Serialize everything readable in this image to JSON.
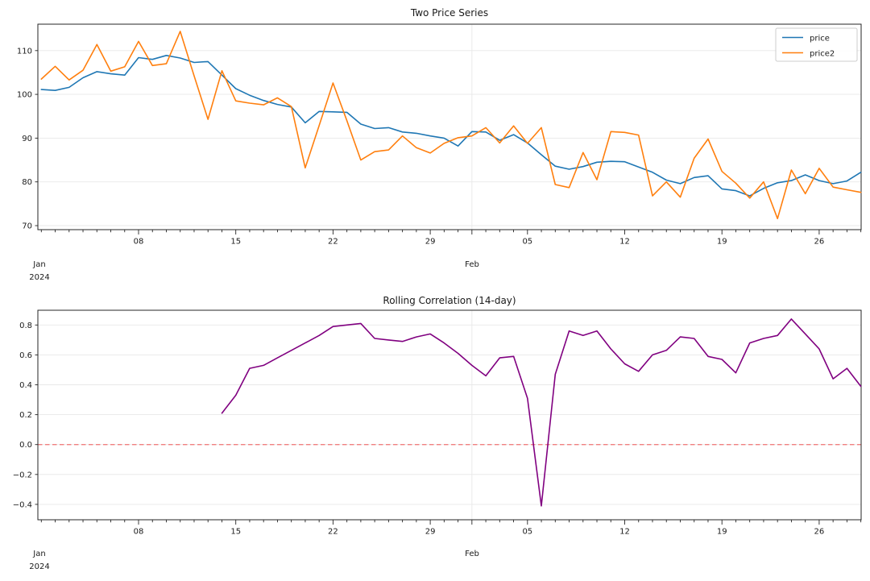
{
  "chart_data": [
    {
      "type": "line",
      "title": "Two Price Series",
      "grid": true,
      "x_axis": {
        "start": "2024-01-01",
        "end": "2024-02-29",
        "frequency": "daily",
        "major_tick_labels": [
          "08",
          "15",
          "22",
          "29",
          "05",
          "12",
          "19",
          "26"
        ],
        "major_tick_day_indices": [
          7,
          14,
          21,
          28,
          35,
          42,
          49,
          56
        ],
        "month_tick": {
          "day_index": 31,
          "label": "Feb"
        },
        "offset_label": [
          "Jan",
          "2024"
        ]
      },
      "y_axis": {
        "ticks": [
          70,
          80,
          90,
          100,
          110
        ],
        "range": [
          69,
          116
        ]
      },
      "legend": {
        "position": "upper right",
        "entries": [
          "price",
          "price2"
        ]
      },
      "series": [
        {
          "name": "price",
          "color": "#1f77b4",
          "values": [
            101.1,
            100.9,
            101.6,
            103.8,
            105.2,
            104.7,
            104.4,
            108.4,
            108.0,
            108.9,
            108.3,
            107.3,
            107.5,
            104.4,
            101.3,
            99.8,
            98.6,
            97.7,
            97.1,
            93.5,
            96.1,
            96.0,
            95.9,
            93.2,
            92.2,
            92.4,
            91.4,
            91.1,
            90.5,
            90.0,
            88.2,
            91.5,
            91.4,
            89.5,
            90.8,
            88.9,
            86.2,
            83.6,
            82.9,
            83.5,
            84.5,
            84.7,
            84.6,
            83.4,
            82.2,
            80.4,
            79.6,
            81.0,
            81.4,
            78.4,
            78.0,
            76.8,
            78.5,
            79.8,
            80.3,
            81.6,
            80.3,
            79.6,
            80.2,
            82.2
          ]
        },
        {
          "name": "price2",
          "color": "#ff7f0e",
          "values": [
            103.5,
            106.4,
            103.3,
            105.5,
            111.4,
            105.3,
            106.3,
            112.1,
            106.6,
            107.0,
            114.4,
            104.2,
            94.3,
            105.4,
            98.5,
            98.0,
            97.6,
            99.2,
            97.2,
            83.2,
            92.9,
            102.6,
            94.0,
            85.0,
            86.9,
            87.3,
            90.5,
            87.8,
            86.6,
            88.8,
            90.1,
            90.5,
            92.4,
            88.9,
            92.8,
            88.8,
            92.4,
            79.4,
            78.7,
            86.7,
            80.5,
            91.5,
            91.3,
            90.7,
            76.8,
            80.0,
            76.5,
            85.4,
            89.8,
            82.4,
            79.7,
            76.3,
            80.0,
            71.6,
            82.7,
            77.3,
            83.1,
            78.8,
            78.2,
            77.6
          ]
        }
      ]
    },
    {
      "type": "line",
      "title": "Rolling Correlation (14-day)",
      "grid": true,
      "x_axis": {
        "start": "2024-01-01",
        "end": "2024-02-29",
        "frequency": "daily",
        "major_tick_labels": [
          "08",
          "15",
          "22",
          "29",
          "05",
          "12",
          "19",
          "26"
        ],
        "major_tick_day_indices": [
          7,
          14,
          21,
          28,
          35,
          42,
          49,
          56
        ],
        "month_tick": {
          "day_index": 31,
          "label": "Feb"
        },
        "offset_label": [
          "Jan",
          "2024"
        ]
      },
      "y_axis": {
        "ticks": [
          -0.4,
          -0.2,
          0.0,
          0.2,
          0.4,
          0.6,
          0.8
        ],
        "tick_labels": [
          "−0.4",
          "−0.2",
          "0.0",
          "0.2",
          "0.4",
          "0.6",
          "0.8"
        ],
        "range": [
          -0.5,
          0.9
        ]
      },
      "zero_line": {
        "y": 0.0,
        "style": "dashed",
        "color": "#f08080"
      },
      "series": [
        {
          "name": "rolling_correlation",
          "color": "#800080",
          "start_day_index": 13,
          "values": [
            0.21,
            0.33,
            0.51,
            0.53,
            0.58,
            0.63,
            0.68,
            0.73,
            0.79,
            0.8,
            0.81,
            0.71,
            0.7,
            0.69,
            0.72,
            0.74,
            0.68,
            0.61,
            0.53,
            0.46,
            0.58,
            0.59,
            0.31,
            -0.41,
            0.47,
            0.76,
            0.73,
            0.76,
            0.64,
            0.54,
            0.49,
            0.6,
            0.63,
            0.72,
            0.71,
            0.59,
            0.57,
            0.48,
            0.68,
            0.71,
            0.73,
            0.84,
            0.74,
            0.64,
            0.44,
            0.51,
            0.39
          ]
        }
      ]
    }
  ]
}
